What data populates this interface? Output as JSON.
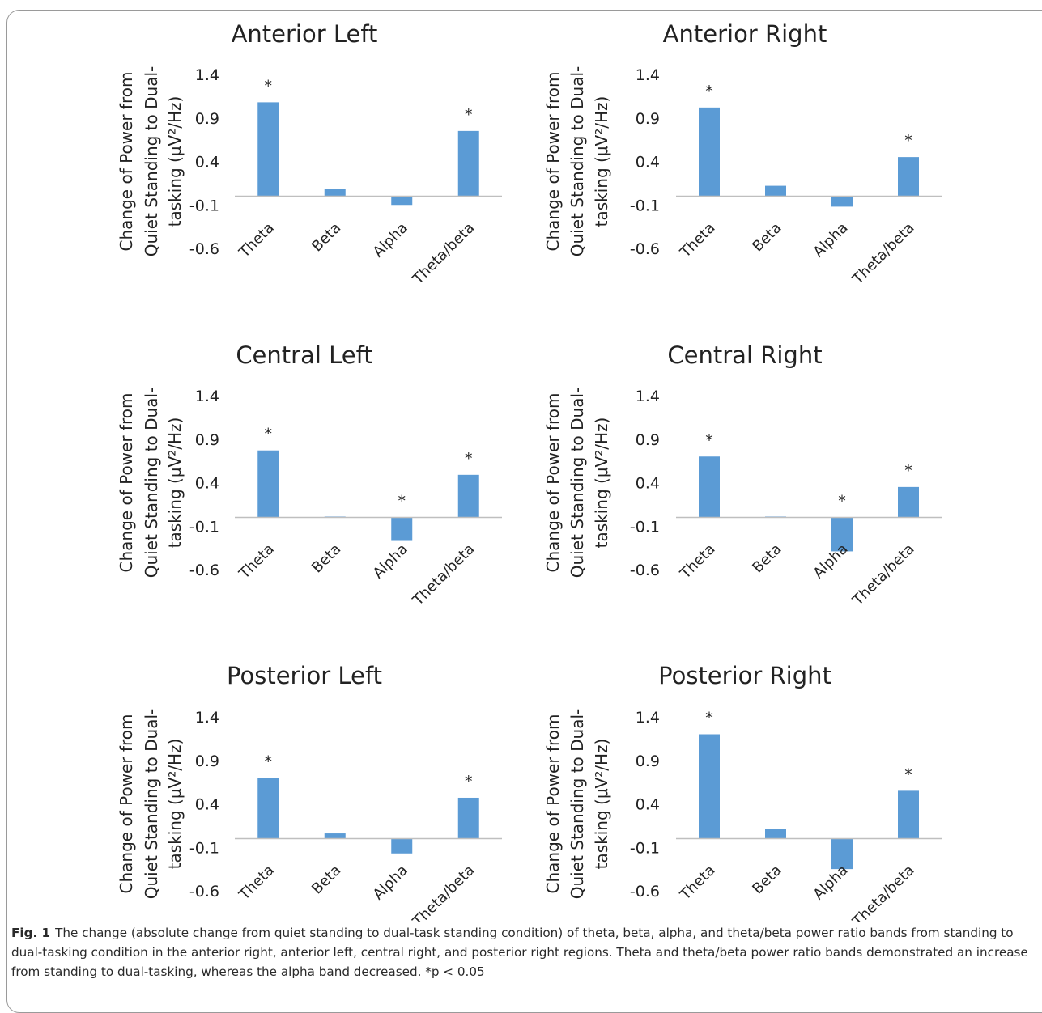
{
  "figure": {
    "caption_label": "Fig. 1",
    "caption_text": "The change (absolute change from quiet standing to dual-task standing condition) of theta, beta, alpha, and theta/beta power ratio bands from standing to dual-tasking condition in the anterior right, anterior left, central right, and posterior right regions. Theta and theta/beta power ratio bands demonstrated an increase from standing to dual-tasking, whereas the alpha band decreased. *p < 0.05"
  },
  "style": {
    "bar_color": "#5b9bd5",
    "axis_color": "#bfbfbf",
    "text_color": "#333333"
  },
  "chart_data": [
    {
      "type": "bar",
      "title": "Anterior Left",
      "categories": [
        "Theta",
        "Beta",
        "Alpha",
        "Theta/beta"
      ],
      "values": [
        1.08,
        0.08,
        -0.1,
        0.75
      ],
      "significant": [
        true,
        false,
        false,
        true
      ],
      "significance_marker": "*",
      "ylabel_lines": [
        "Change of Power from",
        "Quiet Standing to Dual-",
        "tasking (μV²/Hz)"
      ],
      "ylim": [
        -0.6,
        1.4
      ],
      "yticks": [
        "1.4",
        "0.9",
        "0.4",
        "-0.1",
        "-0.6"
      ],
      "grid": false,
      "legend": "none"
    },
    {
      "type": "bar",
      "title": "Anterior Right",
      "categories": [
        "Theta",
        "Beta",
        "Alpha",
        "Theta/beta"
      ],
      "values": [
        1.02,
        0.12,
        -0.12,
        0.45
      ],
      "significant": [
        true,
        false,
        false,
        true
      ],
      "significance_marker": "*",
      "ylabel_lines": [
        "Change of Power from",
        "Quiet  Standing to Dual-",
        "tasking (μV²/Hz)"
      ],
      "ylim": [
        -0.6,
        1.4
      ],
      "yticks": [
        "1.4",
        "0.9",
        "0.4",
        "-0.1",
        "-0.6"
      ],
      "grid": false,
      "legend": "none"
    },
    {
      "type": "bar",
      "title": "Central Left",
      "categories": [
        "Theta",
        "Beta",
        "Alpha",
        "Theta/beta"
      ],
      "values": [
        0.77,
        0.01,
        -0.27,
        0.49
      ],
      "significant": [
        true,
        false,
        true,
        true
      ],
      "significance_marker": "*",
      "ylabel_lines": [
        "Change of Power from",
        "Quiet Standing to Dual-",
        "tasking (μV²/Hz)"
      ],
      "ylim": [
        -0.6,
        1.4
      ],
      "yticks": [
        "1.4",
        "0.9",
        "0.4",
        "-0.1",
        "-0.6"
      ],
      "grid": false,
      "legend": "none"
    },
    {
      "type": "bar",
      "title": "Central Right",
      "categories": [
        "Theta",
        "Beta",
        "Alpha",
        "Theta/beta"
      ],
      "values": [
        0.7,
        0.01,
        -0.39,
        0.35
      ],
      "significant": [
        true,
        false,
        true,
        true
      ],
      "significance_marker": "*",
      "ylabel_lines": [
        "Change of Power from",
        "Quiet Standing to Dual-",
        "tasking (μV²/Hz)"
      ],
      "ylim": [
        -0.6,
        1.4
      ],
      "yticks": [
        "1.4",
        "0.9",
        "0.4",
        "-0.1",
        "-0.6"
      ],
      "grid": false,
      "legend": "none"
    },
    {
      "type": "bar",
      "title": "Posterior Left",
      "categories": [
        "Theta",
        "Beta",
        "Alpha",
        "Theta/beta"
      ],
      "values": [
        0.7,
        0.06,
        -0.17,
        0.47
      ],
      "significant": [
        true,
        false,
        false,
        true
      ],
      "significance_marker": "*",
      "ylabel_lines": [
        "Change of Power from",
        "Quiet Standing to Dual-",
        "tasking (μV²/Hz)"
      ],
      "ylim": [
        -0.6,
        1.4
      ],
      "yticks": [
        "1.4",
        "0.9",
        "0.4",
        "-0.1",
        "-0.6"
      ],
      "grid": false,
      "legend": "none"
    },
    {
      "type": "bar",
      "title": "Posterior Right",
      "categories": [
        "Theta",
        "Beta",
        "Alpha",
        "Theta/beta"
      ],
      "values": [
        1.2,
        0.11,
        -0.35,
        0.55
      ],
      "significant": [
        true,
        false,
        false,
        true
      ],
      "significance_marker": "*",
      "ylabel_lines": [
        "Change of Power from",
        "Quiet Standing to Dual-",
        "tasking (μV²/Hz)"
      ],
      "ylim": [
        -0.6,
        1.4
      ],
      "yticks": [
        "1.4",
        "0.9",
        "0.4",
        "-0.1",
        "-0.6"
      ],
      "grid": false,
      "legend": "none"
    }
  ]
}
